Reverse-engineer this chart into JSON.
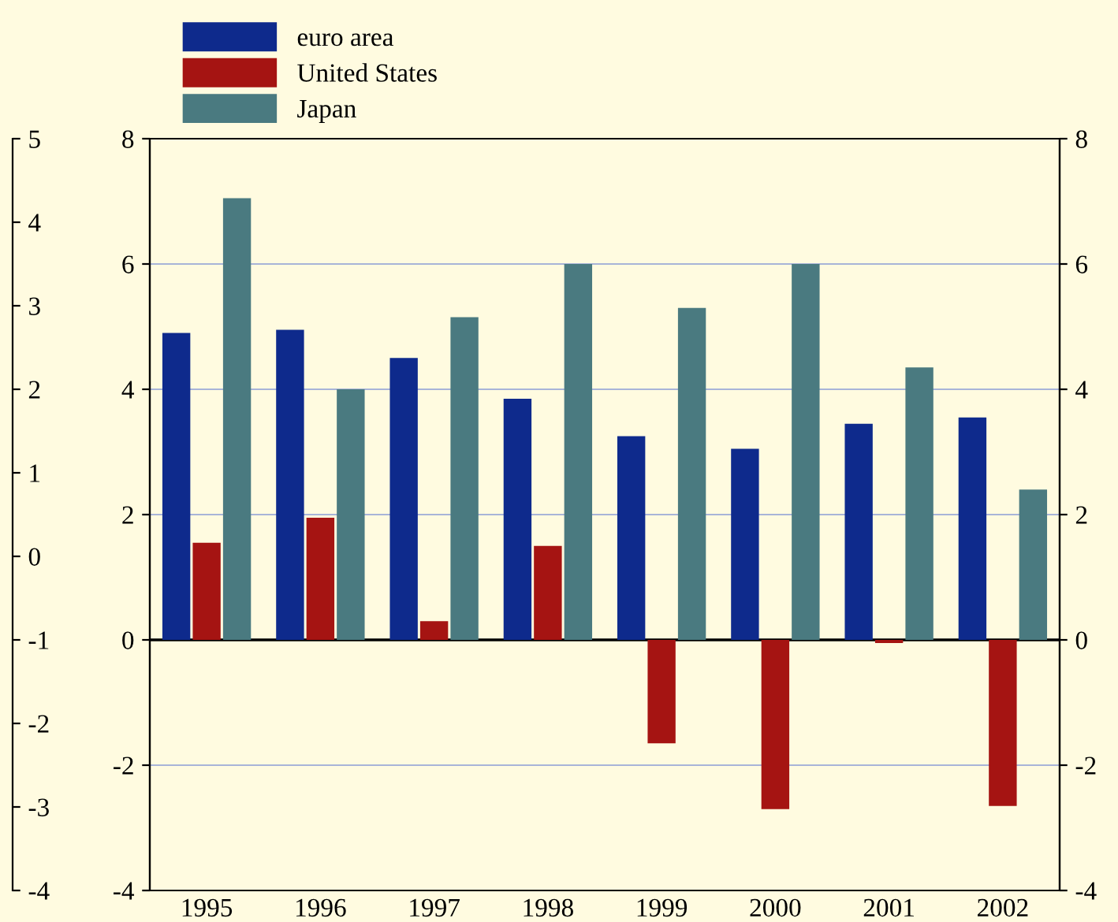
{
  "chart_data": {
    "type": "bar",
    "categories": [
      "1995",
      "1996",
      "1997",
      "1998",
      "1999",
      "2000",
      "2001",
      "2002"
    ],
    "series": [
      {
        "name": "euro area",
        "color": "#0e2a8c",
        "values": [
          4.9,
          4.95,
          4.5,
          3.85,
          3.25,
          3.05,
          3.45,
          3.55
        ]
      },
      {
        "name": "United States",
        "color": "#a51412",
        "values": [
          1.55,
          1.95,
          0.3,
          1.5,
          -1.65,
          -2.7,
          -0.05,
          -2.65
        ]
      },
      {
        "name": "Japan",
        "color": "#4a7a80",
        "values": [
          7.05,
          4.0,
          5.15,
          6.0,
          5.3,
          6.0,
          4.35,
          2.4
        ]
      }
    ],
    "ylim": [
      -4,
      8
    ],
    "yticks": [
      -4,
      -2,
      0,
      2,
      4,
      6,
      8
    ],
    "y2lim": [
      -4,
      8
    ],
    "y2ticks": [
      -4,
      -2,
      0,
      2,
      4,
      6,
      8
    ],
    "y3lim": [
      -4,
      5
    ],
    "y3ticks": [
      -4,
      -3,
      -2,
      -1,
      0,
      1,
      2,
      3,
      4,
      5
    ],
    "grid": "y",
    "legend": "top left",
    "ref_lines": [
      {
        "axis": "y",
        "value": 0,
        "color": "#000000"
      }
    ]
  }
}
